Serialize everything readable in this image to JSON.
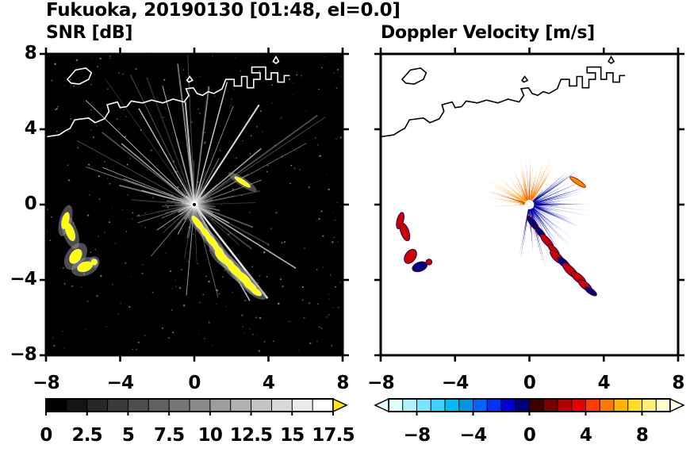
{
  "header": {
    "title": "Fukuoka, 20190130 [01:48, el=0.0]"
  },
  "panels": {
    "snr": {
      "subtitle": "SNR [dB]"
    },
    "vel": {
      "subtitle": "Doppler Velocity [m/s]"
    }
  },
  "axes": {
    "xlim": [
      -8,
      8
    ],
    "ylim": [
      -8,
      8
    ],
    "tick_values": [
      -8,
      -4,
      0,
      4,
      8
    ],
    "x_tick_labels": [
      "−8",
      "−4",
      "0",
      "4",
      "8"
    ],
    "y_tick_labels": [
      "8",
      "4",
      "0",
      "−4",
      "−8"
    ]
  },
  "colorbars": {
    "snr": {
      "min": 0,
      "max": 17.5,
      "segments": 14,
      "tick_values": [
        0,
        2.5,
        5,
        7.5,
        10,
        12.5,
        15,
        17.5
      ],
      "tick_labels": [
        "0",
        "2.5",
        "5",
        "7.5",
        "10",
        "12.5",
        "15",
        "17.5"
      ],
      "over_color": "#ffec00"
    },
    "vel": {
      "min": -10,
      "max": 10,
      "tick_values": [
        -8,
        -4,
        0,
        4,
        8
      ],
      "tick_labels": [
        "−8",
        "−4",
        "0",
        "4",
        "8"
      ],
      "under_color": "#eaffff",
      "over_color": "#ffffe8",
      "segment_colors": [
        "#e0ffff",
        "#b0f0ff",
        "#78e4ff",
        "#3cd2ff",
        "#00bcf0",
        "#0096e6",
        "#0064ff",
        "#0032ff",
        "#0000d2",
        "#000078",
        "#3c0000",
        "#780000",
        "#b40000",
        "#e60000",
        "#ff3c00",
        "#ff7800",
        "#ffb400",
        "#ffdc28",
        "#fff078",
        "#ffffc8"
      ]
    }
  },
  "chart_data": {
    "type": "heatmap",
    "title": "Fukuoka, 20190130 [01:48, el=0.0]",
    "site": "Fukuoka",
    "date": "20190130",
    "time": "01:48",
    "elevation_deg": 0.0,
    "x_range_km": [
      -8,
      8
    ],
    "y_range_km": [
      -8,
      8
    ],
    "radar_center": [
      0,
      0
    ],
    "panels": [
      {
        "name": "SNR",
        "units": "dB",
        "scale_min": 0,
        "scale_max": 17.5,
        "colormap": "black-to-white grayscale with yellow overflow arrow",
        "background": "#000000",
        "features": "dense gray ground-clutter rays radiating from radar site at (0,0); bright yellow precipitation echoes: cluster near (-6.7,-1) to (-5.5,-3.3) and a diagonal chain from (0,-1) to (3.3,-4.6); white coastline across the north"
      },
      {
        "name": "Doppler Velocity",
        "units": "m/s",
        "scale_min": -10,
        "scale_max": 10,
        "colormap": "pale-cyan to blue to near-black (center) to red to orange to pale-yellow diverging",
        "background": "#ffffff",
        "features": "positive velocities (orange/red, ~+2 to +8 m/s) fan northwest/north of radar; negative velocities (blue/navy, ~-2 to -8 m/s) fan east to south-southeast of radar; red and navy echo patches southwest and southeast matching SNR echoes; black coastline across the north"
      }
    ],
    "coastline": {
      "mainland": [
        [
          -8,
          3.6
        ],
        [
          -7.3,
          3.7
        ],
        [
          -6.9,
          3.95
        ],
        [
          -6.7,
          4.05
        ],
        [
          -6.45,
          4.5
        ],
        [
          -5.7,
          4.6
        ],
        [
          -5.35,
          4.35
        ],
        [
          -4.85,
          4.55
        ],
        [
          -4.6,
          4.95
        ],
        [
          -4.7,
          5.3
        ],
        [
          -4.15,
          5.45
        ],
        [
          -4,
          5.15
        ],
        [
          -3.65,
          5.2
        ],
        [
          -3.4,
          5.5
        ],
        [
          -2.8,
          5.4
        ],
        [
          -2.3,
          5.55
        ],
        [
          -1.7,
          5.4
        ],
        [
          -1.15,
          5.6
        ],
        [
          -0.55,
          5.45
        ],
        [
          -0.3,
          5.8
        ],
        [
          -0.45,
          6.15
        ],
        [
          -0.05,
          6.2
        ],
        [
          0.15,
          5.9
        ],
        [
          0.45,
          5.8
        ],
        [
          0.75,
          6
        ],
        [
          1.05,
          5.9
        ],
        [
          1.5,
          6.15
        ],
        [
          1.7,
          6.65
        ],
        [
          2.15,
          6.65
        ],
        [
          2.15,
          6.3
        ],
        [
          2.55,
          6.3
        ],
        [
          2.55,
          6.8
        ],
        [
          2.85,
          6.8
        ],
        [
          2.85,
          6.2
        ],
        [
          3.2,
          6.2
        ],
        [
          3.2,
          6.65
        ],
        [
          3.55,
          6.65
        ],
        [
          3.55,
          7
        ],
        [
          3.1,
          7
        ],
        [
          3.1,
          7.3
        ],
        [
          3.85,
          7.3
        ],
        [
          3.85,
          6.65
        ],
        [
          4.15,
          6.65
        ],
        [
          4.15,
          7
        ],
        [
          4.5,
          7
        ],
        [
          4.5,
          6.5
        ],
        [
          4.85,
          6.5
        ],
        [
          4.85,
          6.85
        ],
        [
          5.15,
          6.85
        ]
      ],
      "islands": [
        [
          [
            -6.85,
            6.65
          ],
          [
            -6.4,
            7.15
          ],
          [
            -5.85,
            7.25
          ],
          [
            -5.55,
            7
          ],
          [
            -5.7,
            6.65
          ],
          [
            -6.2,
            6.4
          ],
          [
            -6.65,
            6.45
          ]
        ],
        [
          [
            -0.4,
            6.6
          ],
          [
            -0.25,
            6.8
          ],
          [
            -0.1,
            6.6
          ],
          [
            -0.3,
            6.5
          ]
        ],
        [
          [
            4.25,
            7.6
          ],
          [
            4.4,
            7.85
          ],
          [
            4.55,
            7.6
          ],
          [
            4.4,
            7.5
          ]
        ]
      ]
    },
    "echo_blobs": [
      {
        "x": -6.95,
        "y": -0.85,
        "rx": 0.18,
        "ry": 0.45,
        "rot": -15,
        "vel": "red"
      },
      {
        "x": -6.7,
        "y": -1.45,
        "rx": 0.22,
        "ry": 0.5,
        "rot": 20,
        "vel": "red"
      },
      {
        "x": -6.4,
        "y": -2.75,
        "rx": 0.28,
        "ry": 0.42,
        "rot": -35,
        "vel": "red"
      },
      {
        "x": -5.9,
        "y": -3.3,
        "rx": 0.42,
        "ry": 0.25,
        "rot": 20,
        "vel": "navy"
      },
      {
        "x": -5.4,
        "y": -3.05,
        "rx": 0.16,
        "ry": 0.16,
        "rot": 0,
        "vel": "red"
      },
      {
        "x": 0.2,
        "y": -1,
        "rx": 0.5,
        "ry": 0.16,
        "rot": -52,
        "vel": "navy"
      },
      {
        "x": 0.6,
        "y": -1.5,
        "rx": 0.45,
        "ry": 0.15,
        "rot": -50,
        "vel": "navy"
      },
      {
        "x": 0.95,
        "y": -1.95,
        "rx": 0.5,
        "ry": 0.17,
        "rot": -48,
        "vel": "red"
      },
      {
        "x": 1.3,
        "y": -2.4,
        "rx": 0.42,
        "ry": 0.15,
        "rot": -46,
        "vel": "red"
      },
      {
        "x": 1.5,
        "y": -2.8,
        "rx": 0.5,
        "ry": 0.2,
        "rot": -44,
        "vel": "red"
      },
      {
        "x": 1.85,
        "y": -3.1,
        "rx": 0.45,
        "ry": 0.18,
        "rot": -42,
        "vel": "navy"
      },
      {
        "x": 2.2,
        "y": -3.5,
        "rx": 0.55,
        "ry": 0.2,
        "rot": -44,
        "vel": "red"
      },
      {
        "x": 2.65,
        "y": -3.9,
        "rx": 0.5,
        "ry": 0.2,
        "rot": -40,
        "vel": "red"
      },
      {
        "x": 3,
        "y": -4.3,
        "rx": 0.45,
        "ry": 0.18,
        "rot": -38,
        "vel": "red"
      },
      {
        "x": 3.3,
        "y": -4.6,
        "rx": 0.38,
        "ry": 0.15,
        "rot": -35,
        "vel": "navy"
      },
      {
        "x": 2.6,
        "y": 1.2,
        "rx": 0.5,
        "ry": 0.12,
        "rot": -33,
        "vel": "orange"
      }
    ],
    "snr_rays": {
      "seed": 7,
      "count": 170,
      "speckles": 320,
      "feature_rays": [
        {
          "a": 57,
          "l": 150,
          "g": 230,
          "w": 2
        },
        {
          "a": 75,
          "l": 160,
          "g": 210,
          "w": 1.5
        },
        {
          "a": 95,
          "l": 130,
          "g": 200,
          "w": 2
        },
        {
          "a": 105,
          "l": 155,
          "g": 185,
          "w": 1
        },
        {
          "a": 120,
          "l": 140,
          "g": 190,
          "w": 1.5
        },
        {
          "a": 140,
          "l": 120,
          "g": 170,
          "w": 1.5
        },
        {
          "a": 160,
          "l": 95,
          "g": 150,
          "w": 1
        },
        {
          "a": 20,
          "l": 90,
          "g": 140,
          "w": 1
        },
        {
          "a": 40,
          "l": 110,
          "g": 180,
          "w": 1.5
        },
        {
          "a": -52,
          "l": 150,
          "g": 235,
          "w": 2.5
        },
        {
          "a": -60,
          "l": 140,
          "g": 200,
          "w": 1.5
        },
        {
          "a": -95,
          "l": 115,
          "g": 160,
          "w": 1
        },
        {
          "a": -130,
          "l": 85,
          "g": 120,
          "w": 1
        }
      ]
    },
    "vel_fan": {
      "seed": 11,
      "count": 260,
      "warm_fraction": 0.45,
      "warm_angle_range": [
        48,
        178
      ],
      "cool_angle_range": [
        -102,
        46
      ],
      "warm_colors": [
        "#ff8c00",
        "#ff7000",
        "#ffa000",
        "#ff4500",
        "#e03000",
        "#ffb400",
        "#ffd24a",
        "#cc1100"
      ],
      "cool_colors": [
        "#00008b",
        "#0000cd",
        "#0000ff",
        "#101099",
        "#000070",
        "#2040dd",
        "#000050",
        "#0808b0"
      ],
      "feature_streaks": [
        {
          "a": 183,
          "l": 48,
          "c": "#ff6600",
          "w": 2
        },
        {
          "a": 150,
          "l": 75,
          "c": "#ffcc00",
          "w": 2
        },
        {
          "a": 85,
          "l": 62,
          "c": "#ffd24a",
          "w": 3
        },
        {
          "a": 100,
          "l": 58,
          "c": "#ffc83c",
          "w": 3
        },
        {
          "a": 65,
          "l": 70,
          "c": "#ff9900",
          "w": 3
        },
        {
          "a": -45,
          "l": 78,
          "c": "#000099",
          "w": 2.5
        },
        {
          "a": -70,
          "l": 72,
          "c": "#0000bb",
          "w": 2
        },
        {
          "a": 15,
          "l": 68,
          "c": "#1133cc",
          "w": 2
        }
      ]
    }
  }
}
